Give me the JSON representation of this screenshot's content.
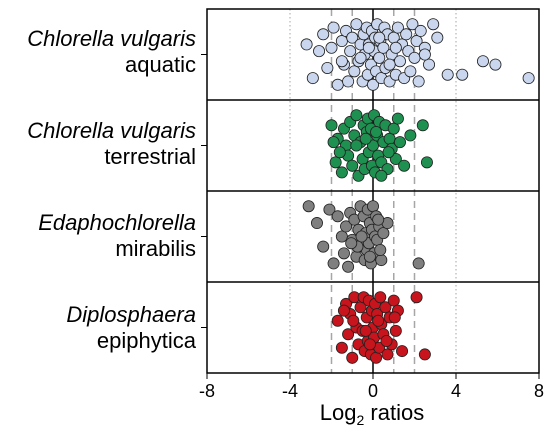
{
  "chart_data": {
    "type": "scatter",
    "xlabel": "Log2 ratios",
    "xlabel_main": "Log",
    "xlabel_sub": "2",
    "xlabel_tail": " ratios",
    "xlim": [
      -8,
      8
    ],
    "xticks": [
      -8,
      -4,
      0,
      4,
      8
    ],
    "xtick_labels": [
      "-8",
      "-4",
      "0",
      "4",
      "8"
    ],
    "dotted_lines": [
      -4,
      4
    ],
    "dashed_lines": [
      -2,
      -1,
      1,
      2
    ],
    "solid_line": 0,
    "grid": false,
    "legend": "none",
    "panels": [
      {
        "species": "Chlorella vulgaris",
        "habitat": "aquatic",
        "color": "#c9d6ee",
        "x": [
          -3.2,
          -2.9,
          -2.6,
          -2.4,
          -2.2,
          -2.0,
          -1.9,
          -1.7,
          -1.5,
          -1.4,
          -1.3,
          -1.2,
          -1.1,
          -1.0,
          -0.9,
          -0.8,
          -0.7,
          -0.6,
          -0.5,
          -0.45,
          -0.4,
          -0.3,
          -0.25,
          -0.2,
          -0.1,
          -0.05,
          0.0,
          0.05,
          0.1,
          0.15,
          0.2,
          0.3,
          0.35,
          0.4,
          0.5,
          0.55,
          0.6,
          0.7,
          0.8,
          0.9,
          1.0,
          1.1,
          1.2,
          1.3,
          1.4,
          1.5,
          1.6,
          1.7,
          1.8,
          1.9,
          2.0,
          2.1,
          2.2,
          2.3,
          2.5,
          2.7,
          2.9,
          3.1,
          3.6,
          4.3,
          5.3,
          5.9,
          7.5,
          -0.6,
          0.3,
          1.1,
          -1.5,
          0.8,
          2.5,
          -0.2
        ],
        "y": [
          0.3,
          -0.7,
          0.1,
          0.6,
          -0.4,
          0.2,
          0.8,
          -0.9,
          0.4,
          -0.3,
          0.7,
          -0.8,
          0.1,
          0.5,
          -0.5,
          0.9,
          -0.2,
          0.3,
          -0.8,
          0.6,
          0.0,
          0.8,
          -0.6,
          0.3,
          -0.3,
          0.7,
          -0.9,
          0.1,
          0.5,
          -0.5,
          0.9,
          -0.1,
          0.4,
          -0.7,
          0.2,
          0.8,
          -0.4,
          0.6,
          -0.8,
          0.0,
          0.5,
          -0.6,
          0.8,
          -0.2,
          0.3,
          -0.7,
          0.6,
          0.1,
          -0.5,
          0.9,
          -0.1,
          0.4,
          -0.8,
          0.7,
          0.2,
          -0.3,
          0.9,
          0.5,
          -0.6,
          -0.6,
          -0.2,
          -0.3,
          -0.7,
          -0.1,
          0.5,
          0.2,
          -0.2,
          -0.3,
          0.0,
          0.2
        ]
      },
      {
        "species": "Chlorella vulgaris",
        "habitat": "terrestrial",
        "color": "#1e9150",
        "x": [
          -2.0,
          -1.8,
          -1.7,
          -1.5,
          -1.4,
          -1.3,
          -1.2,
          -1.1,
          -1.0,
          -0.9,
          -0.8,
          -0.7,
          -0.6,
          -0.5,
          -0.45,
          -0.4,
          -0.3,
          -0.25,
          -0.2,
          -0.1,
          -0.05,
          0.0,
          0.05,
          0.1,
          0.2,
          0.25,
          0.3,
          0.4,
          0.5,
          0.6,
          0.7,
          0.8,
          0.9,
          1.0,
          1.1,
          1.3,
          1.5,
          1.8,
          2.4,
          2.6,
          -1.6,
          -0.8,
          0.4,
          1.2,
          -0.35,
          0.15,
          -1.9,
          0.75
        ],
        "y": [
          0.6,
          -0.5,
          0.2,
          -0.8,
          0.5,
          0.0,
          -0.3,
          0.7,
          -0.6,
          0.3,
          0.9,
          -0.9,
          0.1,
          -0.4,
          0.6,
          -0.7,
          0.4,
          0.8,
          -0.2,
          0.5,
          -0.6,
          0.0,
          0.9,
          -0.8,
          0.3,
          -0.3,
          0.7,
          -0.5,
          0.1,
          0.6,
          -0.7,
          0.2,
          -0.1,
          0.5,
          -0.4,
          0.1,
          -0.6,
          0.3,
          0.6,
          -0.5,
          -0.2,
          0.0,
          -0.9,
          0.8,
          0.2,
          0.4,
          0.1,
          -0.2
        ]
      },
      {
        "species": "Edaphochlorella",
        "habitat": "mirabilis",
        "color": "#7f7f7f",
        "x": [
          -3.1,
          -2.7,
          -2.4,
          -2.1,
          -1.9,
          -1.7,
          -1.5,
          -1.4,
          -1.3,
          -1.2,
          -1.1,
          -1.0,
          -0.9,
          -0.8,
          -0.7,
          -0.6,
          -0.5,
          -0.45,
          -0.4,
          -0.35,
          -0.3,
          -0.25,
          -0.2,
          -0.15,
          -0.1,
          -0.05,
          0.0,
          0.05,
          0.1,
          0.15,
          0.2,
          0.3,
          0.4,
          0.5,
          0.7,
          2.2,
          -0.55,
          -0.15,
          0.25,
          -0.75,
          0.35,
          -1.05
        ],
        "y": [
          0.9,
          0.4,
          -0.3,
          0.8,
          -0.8,
          0.6,
          0.0,
          -0.5,
          0.3,
          -0.9,
          0.7,
          -0.1,
          0.5,
          -0.6,
          0.2,
          0.9,
          -0.3,
          0.6,
          -0.7,
          0.1,
          -0.4,
          0.8,
          -0.2,
          0.4,
          -0.8,
          0.2,
          0.9,
          -0.5,
          0.0,
          0.6,
          -0.1,
          0.3,
          -0.7,
          0.1,
          0.4,
          -0.8,
          0.0,
          -0.6,
          0.5,
          -0.3,
          -0.4,
          -0.2
        ]
      },
      {
        "species": "Diplosphaera",
        "habitat": "epiphytica",
        "color": "#c8141c",
        "x": [
          -1.7,
          -1.5,
          -1.3,
          -1.2,
          -1.1,
          -1.0,
          -0.9,
          -0.8,
          -0.7,
          -0.6,
          -0.5,
          -0.45,
          -0.4,
          -0.3,
          -0.25,
          -0.2,
          -0.1,
          -0.05,
          0.0,
          0.05,
          0.1,
          0.15,
          0.2,
          0.3,
          0.35,
          0.4,
          0.5,
          0.6,
          0.7,
          0.8,
          0.9,
          1.0,
          1.1,
          1.2,
          1.4,
          2.1,
          2.5,
          -0.95,
          -0.35,
          0.25,
          0.65,
          -1.4,
          1.05,
          -0.15
        ],
        "y": [
          0.2,
          -0.6,
          0.7,
          -0.2,
          0.4,
          -0.9,
          0.9,
          0.0,
          -0.5,
          0.6,
          -0.1,
          0.9,
          -0.7,
          0.3,
          -0.4,
          0.8,
          -0.8,
          0.5,
          0.0,
          -0.3,
          0.7,
          -0.9,
          0.4,
          -0.6,
          0.9,
          0.1,
          -0.2,
          0.6,
          -0.8,
          0.3,
          -0.5,
          0.8,
          -0.1,
          0.5,
          -0.7,
          0.9,
          -0.8,
          0.2,
          -0.1,
          0.2,
          -0.4,
          0.5,
          0.3,
          -0.5
        ]
      }
    ]
  }
}
